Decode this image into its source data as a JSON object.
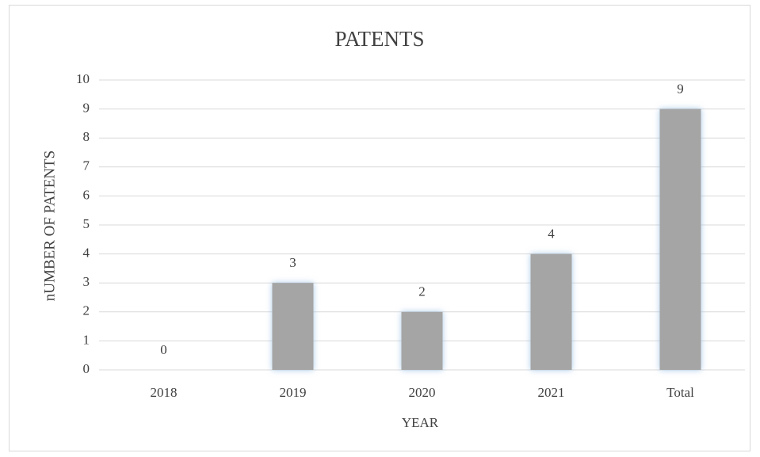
{
  "chart_data": {
    "type": "bar",
    "title": "PATENTS",
    "x_label": "YEAR",
    "y_label": "nUMBER OF PATENTS",
    "categories": [
      "2018",
      "2019",
      "2020",
      "2021",
      "Total"
    ],
    "values": [
      0,
      3,
      2,
      4,
      9
    ],
    "color": "#a5a5a5",
    "ylim": [
      0,
      10
    ],
    "yticks": [
      0,
      1,
      2,
      3,
      4,
      5,
      6,
      7,
      8,
      9,
      10
    ],
    "grid": true
  }
}
